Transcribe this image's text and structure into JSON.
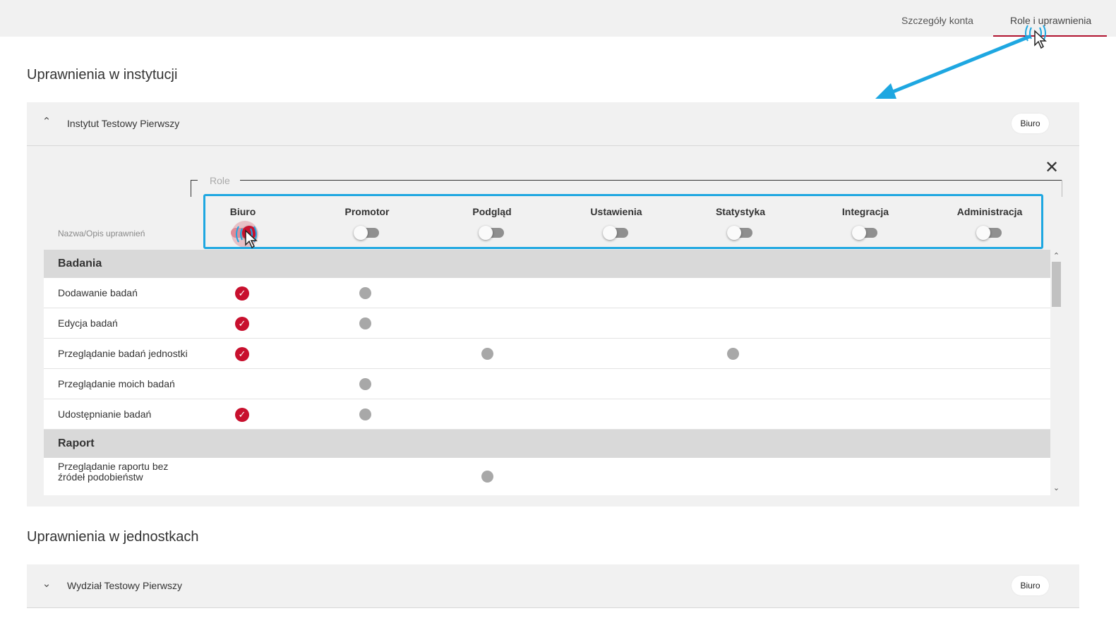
{
  "header": {
    "tabs": [
      {
        "label": "Szczegóły konta",
        "active": false
      },
      {
        "label": "Role i uprawnienia",
        "active": true
      }
    ],
    "accent_color": "#b0132f"
  },
  "institution_section": {
    "title": "Uprawnienia w instytucji",
    "panel": {
      "name": "Instytut Testowy Pierwszy",
      "badge": "Biuro",
      "expanded": true,
      "roles_legend": "Role",
      "column_label": "Nazwa/Opis uprawnień",
      "roles": [
        {
          "label": "Biuro",
          "enabled": true
        },
        {
          "label": "Promotor",
          "enabled": false
        },
        {
          "label": "Podgląd",
          "enabled": false
        },
        {
          "label": "Ustawienia",
          "enabled": false
        },
        {
          "label": "Statystyka",
          "enabled": false
        },
        {
          "label": "Integracja",
          "enabled": false
        },
        {
          "label": "Administracja",
          "enabled": false
        }
      ],
      "groups": [
        {
          "name": "Badania",
          "permissions": [
            {
              "label": "Dodawanie badań",
              "checked": [
                "Biuro"
              ],
              "available": [
                "Promotor"
              ]
            },
            {
              "label": "Edycja badań",
              "checked": [
                "Biuro"
              ],
              "available": [
                "Promotor"
              ]
            },
            {
              "label": "Przeglądanie badań jednostki",
              "checked": [
                "Biuro"
              ],
              "available": [
                "Podgląd",
                "Statystyka"
              ]
            },
            {
              "label": "Przeglądanie moich badań",
              "checked": [],
              "available": [
                "Promotor"
              ]
            },
            {
              "label": "Udostępnianie badań",
              "checked": [
                "Biuro"
              ],
              "available": [
                "Promotor"
              ]
            }
          ]
        },
        {
          "name": "Raport",
          "permissions": [
            {
              "label_line1": "Przeglądanie raportu bez",
              "label_line2": "źródeł podobieństw",
              "checked": [],
              "available": [
                "Podgląd"
              ]
            }
          ]
        }
      ]
    }
  },
  "units_section": {
    "title": "Uprawnienia w jednostkach",
    "panel": {
      "name": "Wydział Testowy Pierwszy",
      "badge": "Biuro",
      "expanded": false
    }
  },
  "icons": {
    "collapse": "chevron-up-icon",
    "expand": "chevron-down-icon",
    "close": "close-icon",
    "checked": "check-circle-icon",
    "available": "gray-dot-icon",
    "annotation_color": "#1ea7e1"
  }
}
